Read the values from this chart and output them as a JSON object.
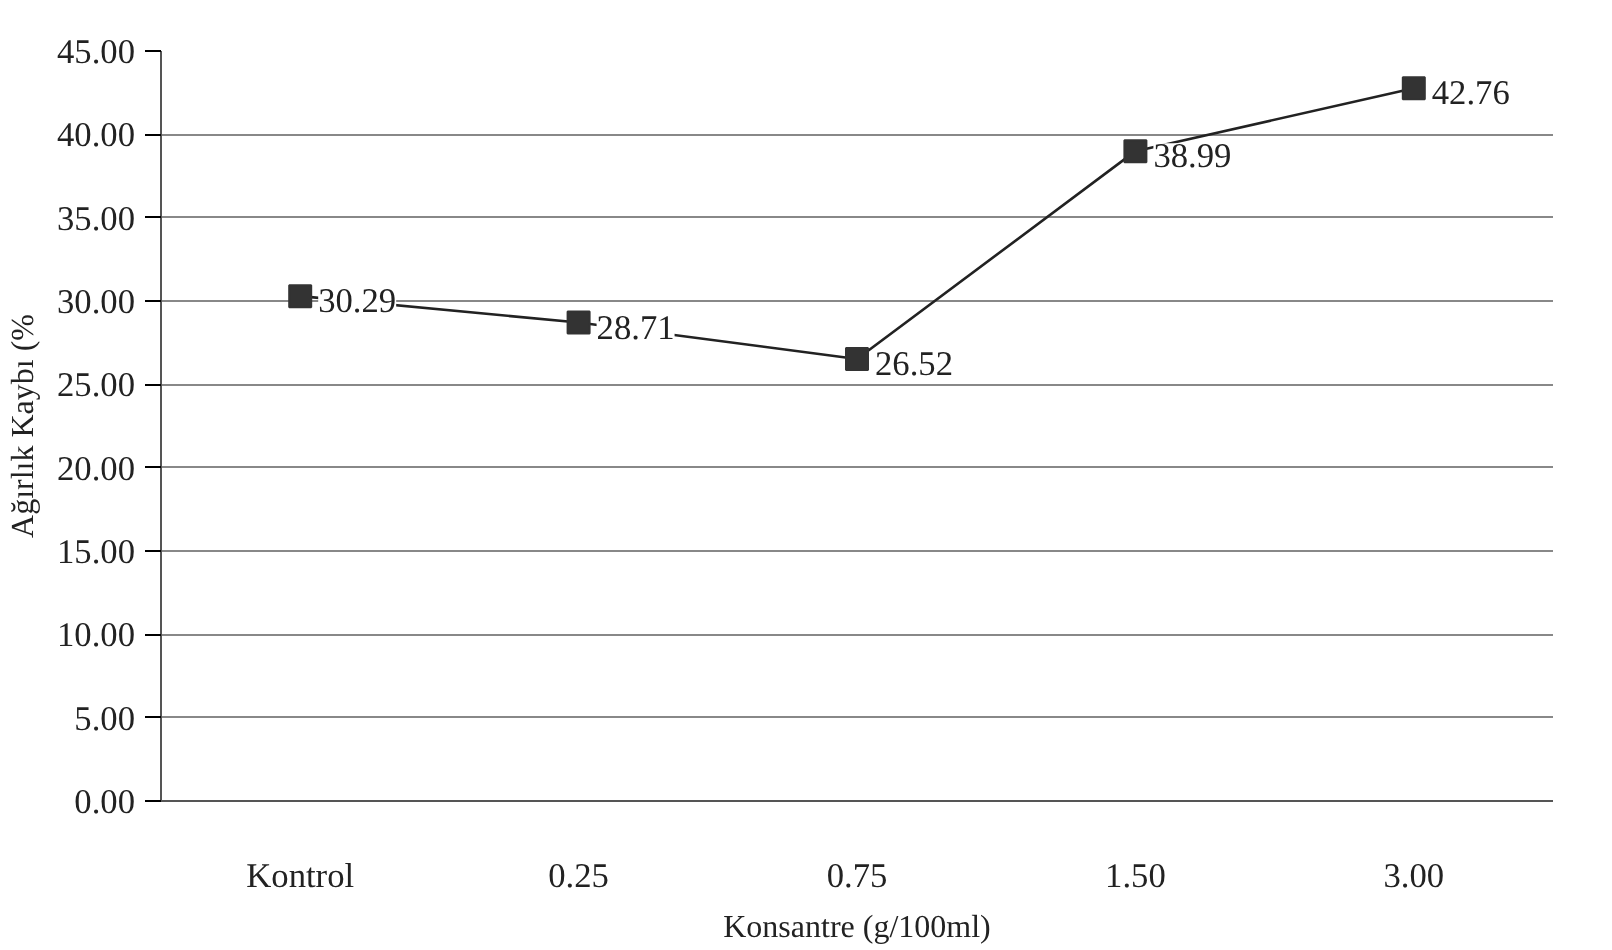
{
  "chart_data": {
    "type": "line",
    "xlabel": "Konsantre (g/100ml)",
    "ylabel": "Ağırlık Kaybı (%",
    "categories": [
      "Kontrol",
      "0.25",
      "0.75",
      "1.50",
      "3.00"
    ],
    "series": [
      {
        "color": "#333333",
        "values": [
          30.29,
          28.71,
          26.52,
          38.99,
          42.76
        ]
      }
    ],
    "ylim": [
      0,
      45
    ],
    "yticks": [
      {
        "value": 0,
        "label": "0.00"
      },
      {
        "value": 5,
        "label": "5.00"
      },
      {
        "value": 10,
        "label": "10.00"
      },
      {
        "value": 15,
        "label": "15.00"
      },
      {
        "value": 20,
        "label": "20.00"
      },
      {
        "value": 25,
        "label": "25.00"
      },
      {
        "value": 30,
        "label": "30.00"
      },
      {
        "value": 35,
        "label": "35.00"
      },
      {
        "value": 40,
        "label": "40.00"
      },
      {
        "value": 45,
        "label": "45.00"
      }
    ],
    "grid": "y",
    "marker": "square",
    "line_style": "solid",
    "data_labels": true
  }
}
